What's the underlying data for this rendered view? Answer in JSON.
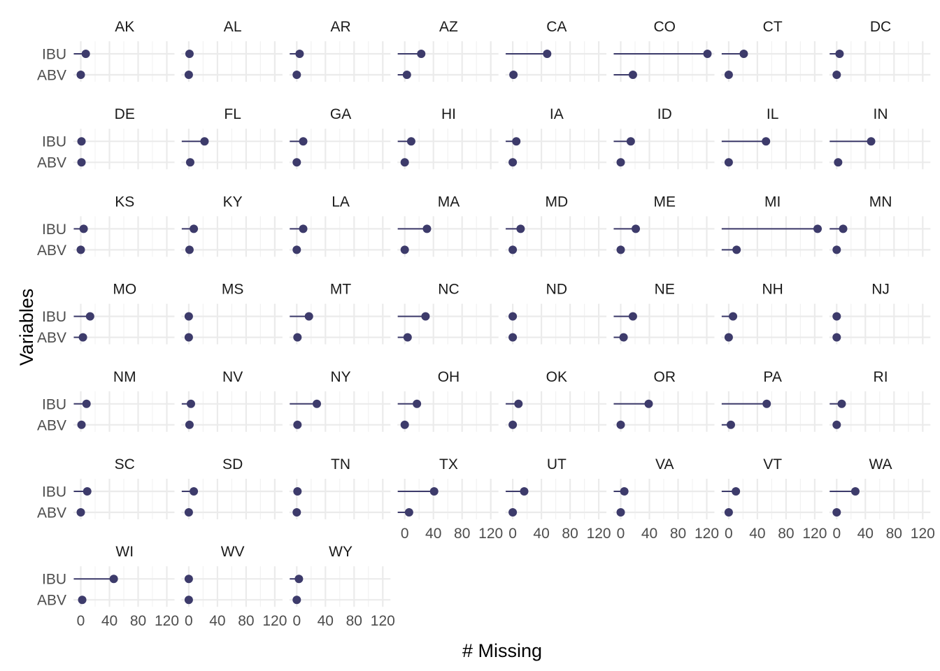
{
  "chart_data": {
    "type": "lollipop",
    "facet_by": "state",
    "xlabel": "# Missing",
    "ylabel": "Variables",
    "variables": [
      "IBU",
      "ABV"
    ],
    "xlim": [
      0,
      130
    ],
    "xticks": [
      0,
      40,
      80,
      120
    ],
    "grid": true,
    "color": "#3d3b6b",
    "facets": [
      {
        "state": "AK",
        "IBU": 7,
        "ABV": 0
      },
      {
        "state": "AL",
        "IBU": 1,
        "ABV": 0
      },
      {
        "state": "AR",
        "IBU": 4,
        "ABV": 0
      },
      {
        "state": "AZ",
        "IBU": 23,
        "ABV": 3
      },
      {
        "state": "CA",
        "IBU": 48,
        "ABV": 1
      },
      {
        "state": "CO",
        "IBU": 121,
        "ABV": 17
      },
      {
        "state": "CT",
        "IBU": 21,
        "ABV": 0
      },
      {
        "state": "DC",
        "IBU": 4,
        "ABV": 0
      },
      {
        "state": "DE",
        "IBU": 1,
        "ABV": 1
      },
      {
        "state": "FL",
        "IBU": 22,
        "ABV": 2
      },
      {
        "state": "GA",
        "IBU": 9,
        "ABV": 0
      },
      {
        "state": "HI",
        "IBU": 9,
        "ABV": 0
      },
      {
        "state": "IA",
        "IBU": 5,
        "ABV": 0
      },
      {
        "state": "ID",
        "IBU": 14,
        "ABV": 0
      },
      {
        "state": "IL",
        "IBU": 52,
        "ABV": 0
      },
      {
        "state": "IN",
        "IBU": 48,
        "ABV": 2
      },
      {
        "state": "KS",
        "IBU": 4,
        "ABV": 0
      },
      {
        "state": "KY",
        "IBU": 7,
        "ABV": 1
      },
      {
        "state": "LA",
        "IBU": 9,
        "ABV": 0
      },
      {
        "state": "MA",
        "IBU": 31,
        "ABV": 0
      },
      {
        "state": "MD",
        "IBU": 11,
        "ABV": 0
      },
      {
        "state": "ME",
        "IBU": 21,
        "ABV": 0
      },
      {
        "state": "MI",
        "IBU": 124,
        "ABV": 11
      },
      {
        "state": "MN",
        "IBU": 9,
        "ABV": 0
      },
      {
        "state": "MO",
        "IBU": 13,
        "ABV": 3
      },
      {
        "state": "MS",
        "IBU": 0,
        "ABV": 0
      },
      {
        "state": "MT",
        "IBU": 17,
        "ABV": 1
      },
      {
        "state": "NC",
        "IBU": 29,
        "ABV": 4
      },
      {
        "state": "ND",
        "IBU": 0,
        "ABV": 0
      },
      {
        "state": "NE",
        "IBU": 17,
        "ABV": 4
      },
      {
        "state": "NH",
        "IBU": 6,
        "ABV": 0
      },
      {
        "state": "NJ",
        "IBU": 0,
        "ABV": 0
      },
      {
        "state": "NM",
        "IBU": 8,
        "ABV": 1
      },
      {
        "state": "NV",
        "IBU": 3,
        "ABV": 1
      },
      {
        "state": "NY",
        "IBU": 28,
        "ABV": 1
      },
      {
        "state": "OH",
        "IBU": 17,
        "ABV": 0
      },
      {
        "state": "OK",
        "IBU": 8,
        "ABV": 0
      },
      {
        "state": "OR",
        "IBU": 39,
        "ABV": 0
      },
      {
        "state": "PA",
        "IBU": 53,
        "ABV": 3
      },
      {
        "state": "RI",
        "IBU": 7,
        "ABV": 0
      },
      {
        "state": "SC",
        "IBU": 9,
        "ABV": 0
      },
      {
        "state": "SD",
        "IBU": 7,
        "ABV": 0
      },
      {
        "state": "TN",
        "IBU": 1,
        "ABV": 0
      },
      {
        "state": "TX",
        "IBU": 41,
        "ABV": 6
      },
      {
        "state": "UT",
        "IBU": 16,
        "ABV": 0
      },
      {
        "state": "VA",
        "IBU": 5,
        "ABV": 0
      },
      {
        "state": "VT",
        "IBU": 10,
        "ABV": 0
      },
      {
        "state": "WA",
        "IBU": 26,
        "ABV": 0
      },
      {
        "state": "WI",
        "IBU": 46,
        "ABV": 2
      },
      {
        "state": "WV",
        "IBU": 0,
        "ABV": 0
      },
      {
        "state": "WY",
        "IBU": 3,
        "ABV": 0
      }
    ]
  }
}
